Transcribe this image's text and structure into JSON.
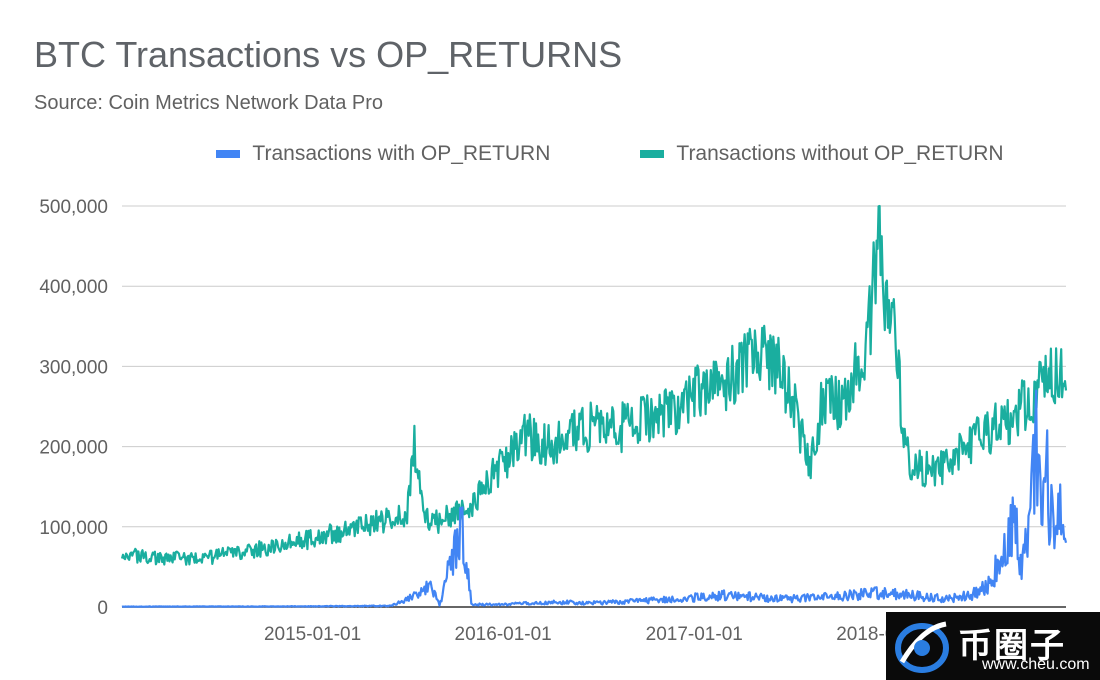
{
  "chart_data": {
    "type": "line",
    "title": "BTC Transactions vs OP_RETURNS",
    "subtitle": "Source: Coin Metrics Network Data Pro",
    "xlabel": "",
    "ylabel": "",
    "legend_position": "top-center",
    "grid": true,
    "ylim": [
      0,
      500000
    ],
    "xlim": [
      "2014-01-01",
      "2018-12-14"
    ],
    "y_ticks": [
      "500,000",
      "400,000",
      "300,000",
      "200,000",
      "100,000",
      "0"
    ],
    "y_tick_values": [
      500000,
      400000,
      300000,
      200000,
      100000,
      0
    ],
    "x_ticks": [
      "2015-01-01",
      "2016-01-01",
      "2017-01-01",
      "2018-01-01"
    ],
    "series": [
      {
        "name": "Transactions with OP_RETURN",
        "color": "#4285f4",
        "points": [
          [
            "2014-01-01",
            500
          ],
          [
            "2014-06-01",
            600
          ],
          [
            "2015-01-01",
            800
          ],
          [
            "2015-06-01",
            1500
          ],
          [
            "2015-08-15",
            25000
          ],
          [
            "2015-09-01",
            2500
          ],
          [
            "2015-10-15",
            105000
          ],
          [
            "2015-11-01",
            3000
          ],
          [
            "2016-01-01",
            3000
          ],
          [
            "2016-04-01",
            6000
          ],
          [
            "2016-07-01",
            5000
          ],
          [
            "2016-10-01",
            8000
          ],
          [
            "2017-01-01",
            12000
          ],
          [
            "2017-03-01",
            15000
          ],
          [
            "2017-05-01",
            12000
          ],
          [
            "2017-07-01",
            10000
          ],
          [
            "2017-09-01",
            12000
          ],
          [
            "2017-11-01",
            15000
          ],
          [
            "2018-01-01",
            18000
          ],
          [
            "2018-03-01",
            14000
          ],
          [
            "2018-05-01",
            10000
          ],
          [
            "2018-06-15",
            15000
          ],
          [
            "2018-07-15",
            25000
          ],
          [
            "2018-08-01",
            45000
          ],
          [
            "2018-08-20",
            75000
          ],
          [
            "2018-09-05",
            100000
          ],
          [
            "2018-09-20",
            60000
          ],
          [
            "2018-10-05",
            120000
          ],
          [
            "2018-10-18",
            190000
          ],
          [
            "2018-10-28",
            110000
          ],
          [
            "2018-11-08",
            160000
          ],
          [
            "2018-11-20",
            90000
          ],
          [
            "2018-12-01",
            110000
          ],
          [
            "2018-12-14",
            80000
          ]
        ]
      },
      {
        "name": "Transactions without OP_RETURN",
        "color": "#1aae9f",
        "points": [
          [
            "2014-01-01",
            65000
          ],
          [
            "2014-03-01",
            62000
          ],
          [
            "2014-06-01",
            60000
          ],
          [
            "2014-09-01",
            70000
          ],
          [
            "2015-01-01",
            85000
          ],
          [
            "2015-03-01",
            95000
          ],
          [
            "2015-05-01",
            105000
          ],
          [
            "2015-07-01",
            115000
          ],
          [
            "2015-07-15",
            200000
          ],
          [
            "2015-08-01",
            110000
          ],
          [
            "2015-09-01",
            105000
          ],
          [
            "2015-11-01",
            130000
          ],
          [
            "2016-01-01",
            180000
          ],
          [
            "2016-02-15",
            215000
          ],
          [
            "2016-04-01",
            200000
          ],
          [
            "2016-06-01",
            225000
          ],
          [
            "2016-08-01",
            220000
          ],
          [
            "2016-10-01",
            235000
          ],
          [
            "2016-12-01",
            250000
          ],
          [
            "2017-01-15",
            275000
          ],
          [
            "2017-03-01",
            280000
          ],
          [
            "2017-05-15",
            320000
          ],
          [
            "2017-06-15",
            300000
          ],
          [
            "2017-07-15",
            240000
          ],
          [
            "2017-08-10",
            175000
          ],
          [
            "2017-09-01",
            250000
          ],
          [
            "2017-10-15",
            260000
          ],
          [
            "2017-12-01",
            340000
          ],
          [
            "2017-12-20",
            460000
          ],
          [
            "2018-01-05",
            380000
          ],
          [
            "2018-01-20",
            340000
          ],
          [
            "2018-02-10",
            190000
          ],
          [
            "2018-03-01",
            175000
          ],
          [
            "2018-04-01",
            170000
          ],
          [
            "2018-05-01",
            180000
          ],
          [
            "2018-06-01",
            200000
          ],
          [
            "2018-07-01",
            210000
          ],
          [
            "2018-08-01",
            225000
          ],
          [
            "2018-09-01",
            230000
          ],
          [
            "2018-10-01",
            260000
          ],
          [
            "2018-11-01",
            280000
          ],
          [
            "2018-12-01",
            290000
          ],
          [
            "2018-12-14",
            270000
          ]
        ]
      }
    ]
  },
  "watermark": {
    "brand": "币圈子",
    "url": "www.cheu.com"
  }
}
